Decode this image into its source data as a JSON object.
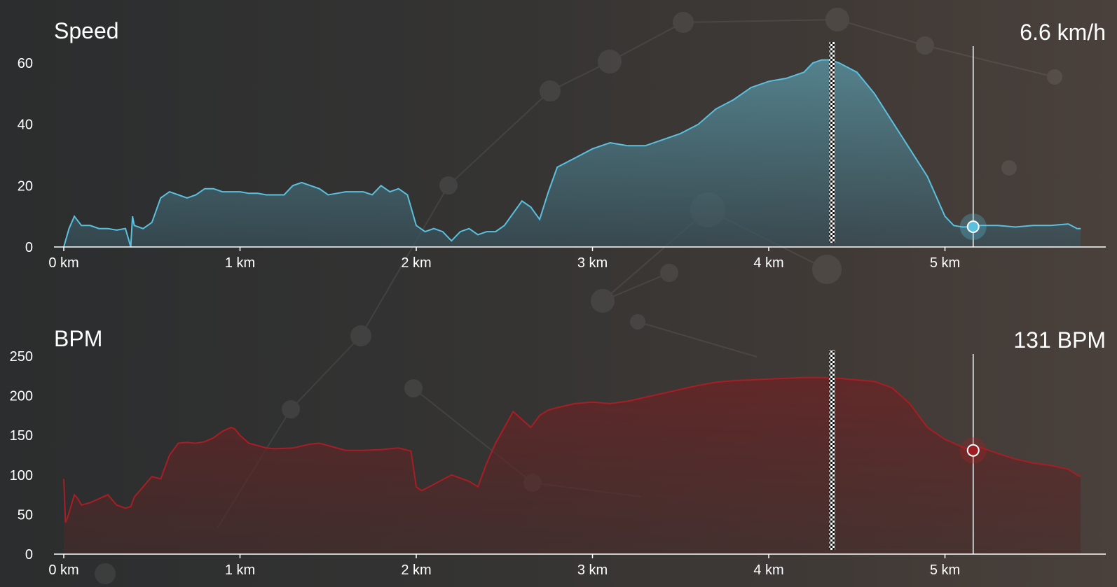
{
  "chart_data": [
    {
      "type": "area",
      "title": "Speed",
      "current_value": 6.6,
      "current_label": "6.6 km/h",
      "x_ticks": [
        "0 km",
        "1 km",
        "2 km",
        "3 km",
        "4 km",
        "5 km"
      ],
      "y_ticks": [
        "0",
        "20",
        "40",
        "60"
      ],
      "xlim": [
        0,
        6
      ],
      "ylim": [
        0,
        62
      ],
      "marker_x": 4.36,
      "cursor_x": 5.16,
      "color": "#5bc0de",
      "x": [
        0,
        0.03,
        0.06,
        0.1,
        0.15,
        0.2,
        0.25,
        0.3,
        0.35,
        0.37,
        0.38,
        0.39,
        0.4,
        0.45,
        0.5,
        0.55,
        0.6,
        0.65,
        0.7,
        0.75,
        0.8,
        0.85,
        0.9,
        0.95,
        1.0,
        1.05,
        1.1,
        1.15,
        1.2,
        1.25,
        1.3,
        1.35,
        1.4,
        1.45,
        1.5,
        1.55,
        1.6,
        1.65,
        1.7,
        1.75,
        1.8,
        1.85,
        1.9,
        1.95,
        2.0,
        2.05,
        2.1,
        2.15,
        2.2,
        2.25,
        2.3,
        2.35,
        2.4,
        2.45,
        2.5,
        2.55,
        2.6,
        2.65,
        2.7,
        2.75,
        2.8,
        2.9,
        3.0,
        3.1,
        3.2,
        3.3,
        3.4,
        3.5,
        3.6,
        3.7,
        3.8,
        3.9,
        4.0,
        4.1,
        4.2,
        4.25,
        4.3,
        4.35,
        4.4,
        4.5,
        4.6,
        4.7,
        4.8,
        4.9,
        5.0,
        5.05,
        5.1,
        5.16,
        5.2,
        5.3,
        5.4,
        5.5,
        5.6,
        5.7,
        5.75,
        5.77
      ],
      "values": [
        0,
        6,
        10,
        7,
        7,
        6,
        6,
        5.5,
        6,
        2,
        0,
        10,
        7,
        6,
        8,
        16,
        18,
        17,
        16,
        17,
        19,
        19,
        18,
        18,
        18,
        17.5,
        17.5,
        17,
        17,
        17,
        20,
        21,
        20,
        19,
        17,
        17.5,
        18,
        18,
        18,
        17,
        20,
        18,
        19,
        17,
        7,
        5,
        6,
        5,
        2,
        5,
        6,
        4,
        5,
        5,
        7,
        11,
        15,
        13,
        9,
        18,
        26,
        29,
        32,
        34,
        33,
        33,
        35,
        37,
        40,
        45,
        48,
        52,
        54,
        55,
        57,
        60,
        61,
        61,
        60,
        57,
        50,
        41,
        32,
        23,
        10,
        7,
        6.5,
        6.6,
        7,
        7,
        6.5,
        7,
        7,
        7.5,
        6,
        6
      ]
    },
    {
      "type": "area",
      "title": "BPM",
      "current_value": 131,
      "current_label": "131 BPM",
      "x_ticks": [
        "0 km",
        "1 km",
        "2 km",
        "3 km",
        "4 km",
        "5 km"
      ],
      "y_ticks": [
        "0",
        "50",
        "100",
        "150",
        "200",
        "250"
      ],
      "xlim": [
        0,
        6
      ],
      "ylim": [
        0,
        254
      ],
      "marker_x": 4.36,
      "cursor_x": 5.16,
      "color": "#b02026",
      "x": [
        0,
        0.01,
        0.02,
        0.04,
        0.06,
        0.08,
        0.1,
        0.15,
        0.2,
        0.25,
        0.3,
        0.35,
        0.38,
        0.4,
        0.45,
        0.5,
        0.55,
        0.6,
        0.65,
        0.7,
        0.75,
        0.8,
        0.85,
        0.9,
        0.95,
        0.97,
        1.0,
        1.05,
        1.1,
        1.15,
        1.2,
        1.3,
        1.4,
        1.45,
        1.5,
        1.6,
        1.7,
        1.8,
        1.9,
        1.97,
        2.0,
        2.03,
        2.1,
        2.2,
        2.3,
        2.35,
        2.4,
        2.45,
        2.5,
        2.55,
        2.6,
        2.65,
        2.7,
        2.75,
        2.8,
        2.9,
        3.0,
        3.1,
        3.2,
        3.3,
        3.4,
        3.5,
        3.6,
        3.7,
        3.8,
        3.9,
        4.0,
        4.1,
        4.2,
        4.3,
        4.4,
        4.5,
        4.6,
        4.7,
        4.8,
        4.9,
        5.0,
        5.05,
        5.1,
        5.16,
        5.2,
        5.3,
        5.4,
        5.5,
        5.6,
        5.7,
        5.75,
        5.77
      ],
      "values": [
        95,
        40,
        45,
        60,
        75,
        70,
        62,
        65,
        70,
        75,
        62,
        58,
        60,
        72,
        85,
        98,
        95,
        125,
        140,
        141,
        140,
        142,
        147,
        155,
        160,
        158,
        150,
        140,
        137,
        134,
        133,
        134,
        139,
        140,
        137,
        131,
        131,
        132,
        134,
        130,
        85,
        80,
        88,
        100,
        92,
        85,
        115,
        140,
        160,
        180,
        170,
        160,
        175,
        182,
        185,
        190,
        192,
        190,
        193,
        198,
        203,
        208,
        213,
        217,
        219,
        220,
        221,
        222,
        223,
        223,
        222,
        220,
        218,
        210,
        190,
        160,
        145,
        140,
        135,
        131,
        135,
        127,
        120,
        115,
        112,
        107,
        100,
        98
      ]
    }
  ]
}
